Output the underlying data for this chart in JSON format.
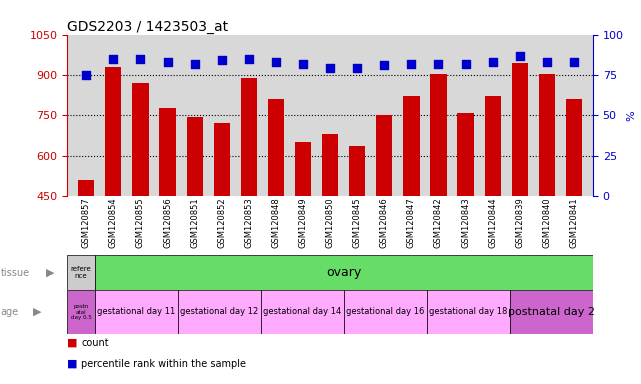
{
  "title": "GDS2203 / 1423503_at",
  "samples": [
    "GSM120857",
    "GSM120854",
    "GSM120855",
    "GSM120856",
    "GSM120851",
    "GSM120852",
    "GSM120853",
    "GSM120848",
    "GSM120849",
    "GSM120850",
    "GSM120845",
    "GSM120846",
    "GSM120847",
    "GSM120842",
    "GSM120843",
    "GSM120844",
    "GSM120839",
    "GSM120840",
    "GSM120841"
  ],
  "counts": [
    510,
    930,
    870,
    775,
    745,
    720,
    890,
    810,
    650,
    680,
    635,
    750,
    820,
    905,
    760,
    820,
    945,
    905,
    810
  ],
  "percentiles": [
    75,
    85,
    85,
    83,
    82,
    84,
    85,
    83,
    82,
    79,
    79,
    81,
    82,
    82,
    82,
    83,
    87,
    83,
    83
  ],
  "ylim_left": [
    450,
    1050
  ],
  "ylim_right": [
    0,
    100
  ],
  "yticks_left": [
    450,
    600,
    750,
    900,
    1050
  ],
  "yticks_right": [
    0,
    25,
    50,
    75,
    100
  ],
  "bar_color": "#cc0000",
  "dot_color": "#0000cc",
  "tissue_row": {
    "first_label": "refere\nnce",
    "first_color": "#cccccc",
    "second_label": "ovary",
    "second_color": "#66dd66"
  },
  "age_row": {
    "first_label": "postn\natal\nday 0.5",
    "first_color": "#cc66cc",
    "groups": [
      {
        "label": "gestational day 11",
        "count": 3,
        "color": "#ffaaff"
      },
      {
        "label": "gestational day 12",
        "count": 3,
        "color": "#ffaaff"
      },
      {
        "label": "gestational day 14",
        "count": 3,
        "color": "#ffaaff"
      },
      {
        "label": "gestational day 16",
        "count": 3,
        "color": "#ffaaff"
      },
      {
        "label": "gestational day 18",
        "count": 3,
        "color": "#ffaaff"
      },
      {
        "label": "postnatal day 2",
        "count": 3,
        "color": "#cc66cc"
      }
    ]
  },
  "bar_width": 0.6,
  "dot_size": 40,
  "background_color": "#d8d8d8"
}
